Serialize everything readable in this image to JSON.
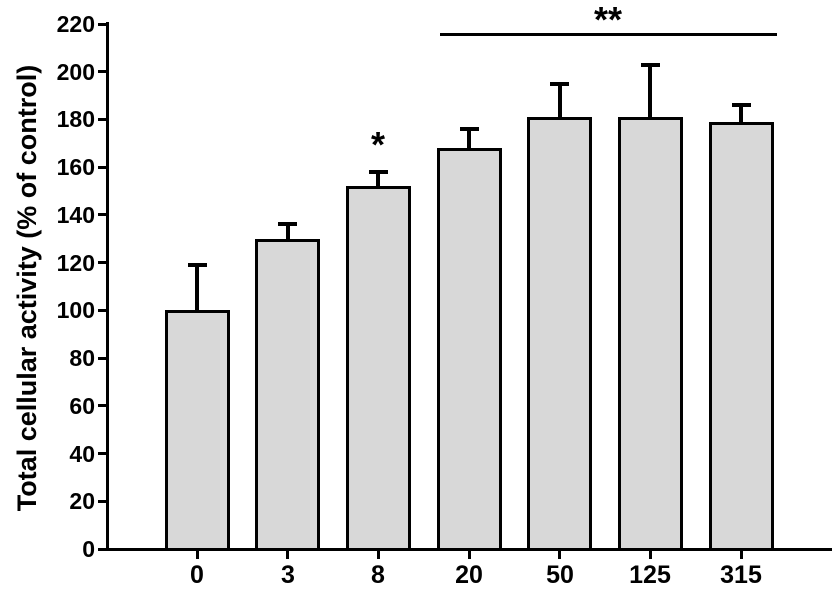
{
  "figure": {
    "background_color": "#ffffff"
  },
  "chart_data": {
    "type": "bar",
    "title": "",
    "xlabel": "",
    "ylabel": "Total cellular activity (% of control)",
    "categories": [
      "0",
      "3",
      "8",
      "20",
      "50",
      "125",
      "315"
    ],
    "values": [
      100,
      130,
      152,
      168,
      181,
      181,
      179
    ],
    "errors_plus": [
      19,
      6,
      6,
      8,
      14,
      22,
      7
    ],
    "ylim": [
      0,
      220
    ],
    "yticks": [
      0,
      20,
      40,
      60,
      80,
      100,
      120,
      140,
      160,
      180,
      200,
      220
    ],
    "grid": false,
    "legend": null,
    "bar_fill_color": "#d8d8d8",
    "bar_edge_color": "#000000",
    "axis_color": "#000000",
    "annotations": [
      {
        "type": "star",
        "label": "*",
        "bar_index": 2
      },
      {
        "type": "bracket-star",
        "label": "**",
        "from_bar_index": 3,
        "to_bar_index": 6
      }
    ]
  }
}
